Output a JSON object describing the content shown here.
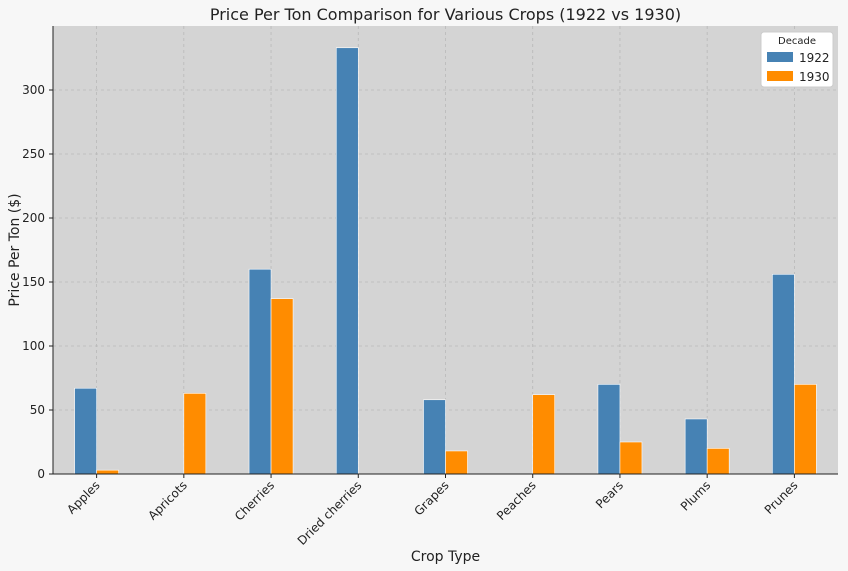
{
  "chart_data": {
    "type": "bar",
    "title": "Price Per Ton Comparison for Various Crops (1922 vs 1930)",
    "xlabel": "Crop Type",
    "ylabel": "Price Per Ton ($)",
    "categories": [
      "Apples",
      "Apricots",
      "Cherries",
      "Dried cherries",
      "Grapes",
      "Peaches",
      "Pears",
      "Plums",
      "Prunes"
    ],
    "series": [
      {
        "name": "1922",
        "color": "#4682b4",
        "values": [
          67,
          null,
          160,
          333,
          58,
          null,
          70,
          43,
          156
        ]
      },
      {
        "name": "1930",
        "color": "#ff8c00",
        "values": [
          3,
          63,
          137,
          null,
          18,
          62,
          25,
          20,
          70
        ]
      }
    ],
    "ylim": [
      0,
      350
    ],
    "yticks": [
      0,
      50,
      100,
      150,
      200,
      250,
      300
    ],
    "grid": true,
    "legend": {
      "title": "Decade",
      "placement": "top-right"
    },
    "colors": {
      "plot_background": "#d4d4d4",
      "page_background": "#f7f7f7"
    }
  }
}
